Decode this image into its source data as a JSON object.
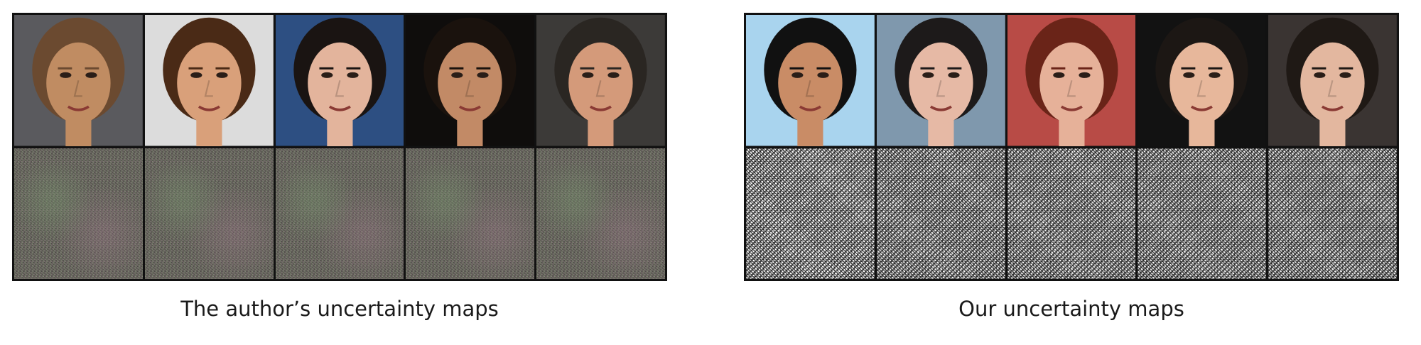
{
  "figure": {
    "left_panel": {
      "caption": "The author’s uncertainty maps",
      "faces": [
        {
          "bg": "#5a5a5e",
          "skin": "#c08c62",
          "hair": "#6b4a30"
        },
        {
          "bg": "#dcdcdc",
          "skin": "#d9a07a",
          "hair": "#4a2a16"
        },
        {
          "bg": "#2d4f82",
          "skin": "#e3b49c",
          "hair": "#1a1412"
        },
        {
          "bg": "#0f0d0c",
          "skin": "#c28a66",
          "hair": "#1a120d"
        },
        {
          "bg": "#3c3a38",
          "skin": "#d49a7a",
          "hair": "#2a2622"
        }
      ]
    },
    "right_panel": {
      "caption": "Our uncertainty maps",
      "faces": [
        {
          "bg": "#a9d4ee",
          "skin": "#c98c66",
          "hair": "#111111"
        },
        {
          "bg": "#7f98ad",
          "skin": "#e6b9a5",
          "hair": "#1d1a1a"
        },
        {
          "bg": "#b84b46",
          "skin": "#e6b199",
          "hair": "#6a2418"
        },
        {
          "bg": "#121212",
          "skin": "#e7b79b",
          "hair": "#1c1714"
        },
        {
          "bg": "#3a3432",
          "skin": "#e3b79f",
          "hair": "#1f1915"
        }
      ]
    }
  }
}
